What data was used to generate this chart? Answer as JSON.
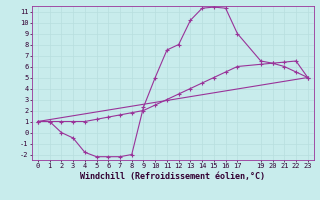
{
  "xlabel": "Windchill (Refroidissement éolien,°C)",
  "bg_color": "#c8ecec",
  "line_color": "#993399",
  "grid_color": "#b8dede",
  "xlim": [
    -0.5,
    23.5
  ],
  "ylim": [
    -2.5,
    11.5
  ],
  "xticks": [
    0,
    1,
    2,
    3,
    4,
    5,
    6,
    7,
    8,
    9,
    10,
    11,
    12,
    13,
    14,
    15,
    16,
    17,
    19,
    20,
    21,
    22,
    23
  ],
  "yticks": [
    -2,
    -1,
    0,
    1,
    2,
    3,
    4,
    5,
    6,
    7,
    8,
    9,
    10,
    11
  ],
  "line1_x": [
    0,
    1,
    2,
    3,
    4,
    5,
    6,
    7,
    8,
    9,
    10,
    11,
    12,
    13,
    14,
    15,
    16,
    17,
    19,
    20,
    21,
    22,
    23
  ],
  "line1_y": [
    1.0,
    1.0,
    0.0,
    -0.5,
    -1.8,
    -2.2,
    -2.2,
    -2.2,
    -2.0,
    2.3,
    5.0,
    7.5,
    8.0,
    10.2,
    11.3,
    11.4,
    11.3,
    9.0,
    6.5,
    6.3,
    6.0,
    5.5,
    5.0
  ],
  "line2_x": [
    0,
    1,
    2,
    3,
    4,
    5,
    6,
    7,
    8,
    9,
    10,
    11,
    12,
    13,
    14,
    15,
    16,
    17,
    19,
    20,
    21,
    22,
    23
  ],
  "line2_y": [
    1.0,
    1.0,
    1.0,
    1.0,
    1.0,
    1.2,
    1.4,
    1.6,
    1.8,
    2.0,
    2.5,
    3.0,
    3.5,
    4.0,
    4.5,
    5.0,
    5.5,
    6.0,
    6.2,
    6.3,
    6.4,
    6.5,
    5.0
  ],
  "line3_x": [
    0,
    23
  ],
  "line3_y": [
    1.0,
    5.0
  ],
  "tick_fontsize": 5.0,
  "label_fontsize": 6.0
}
